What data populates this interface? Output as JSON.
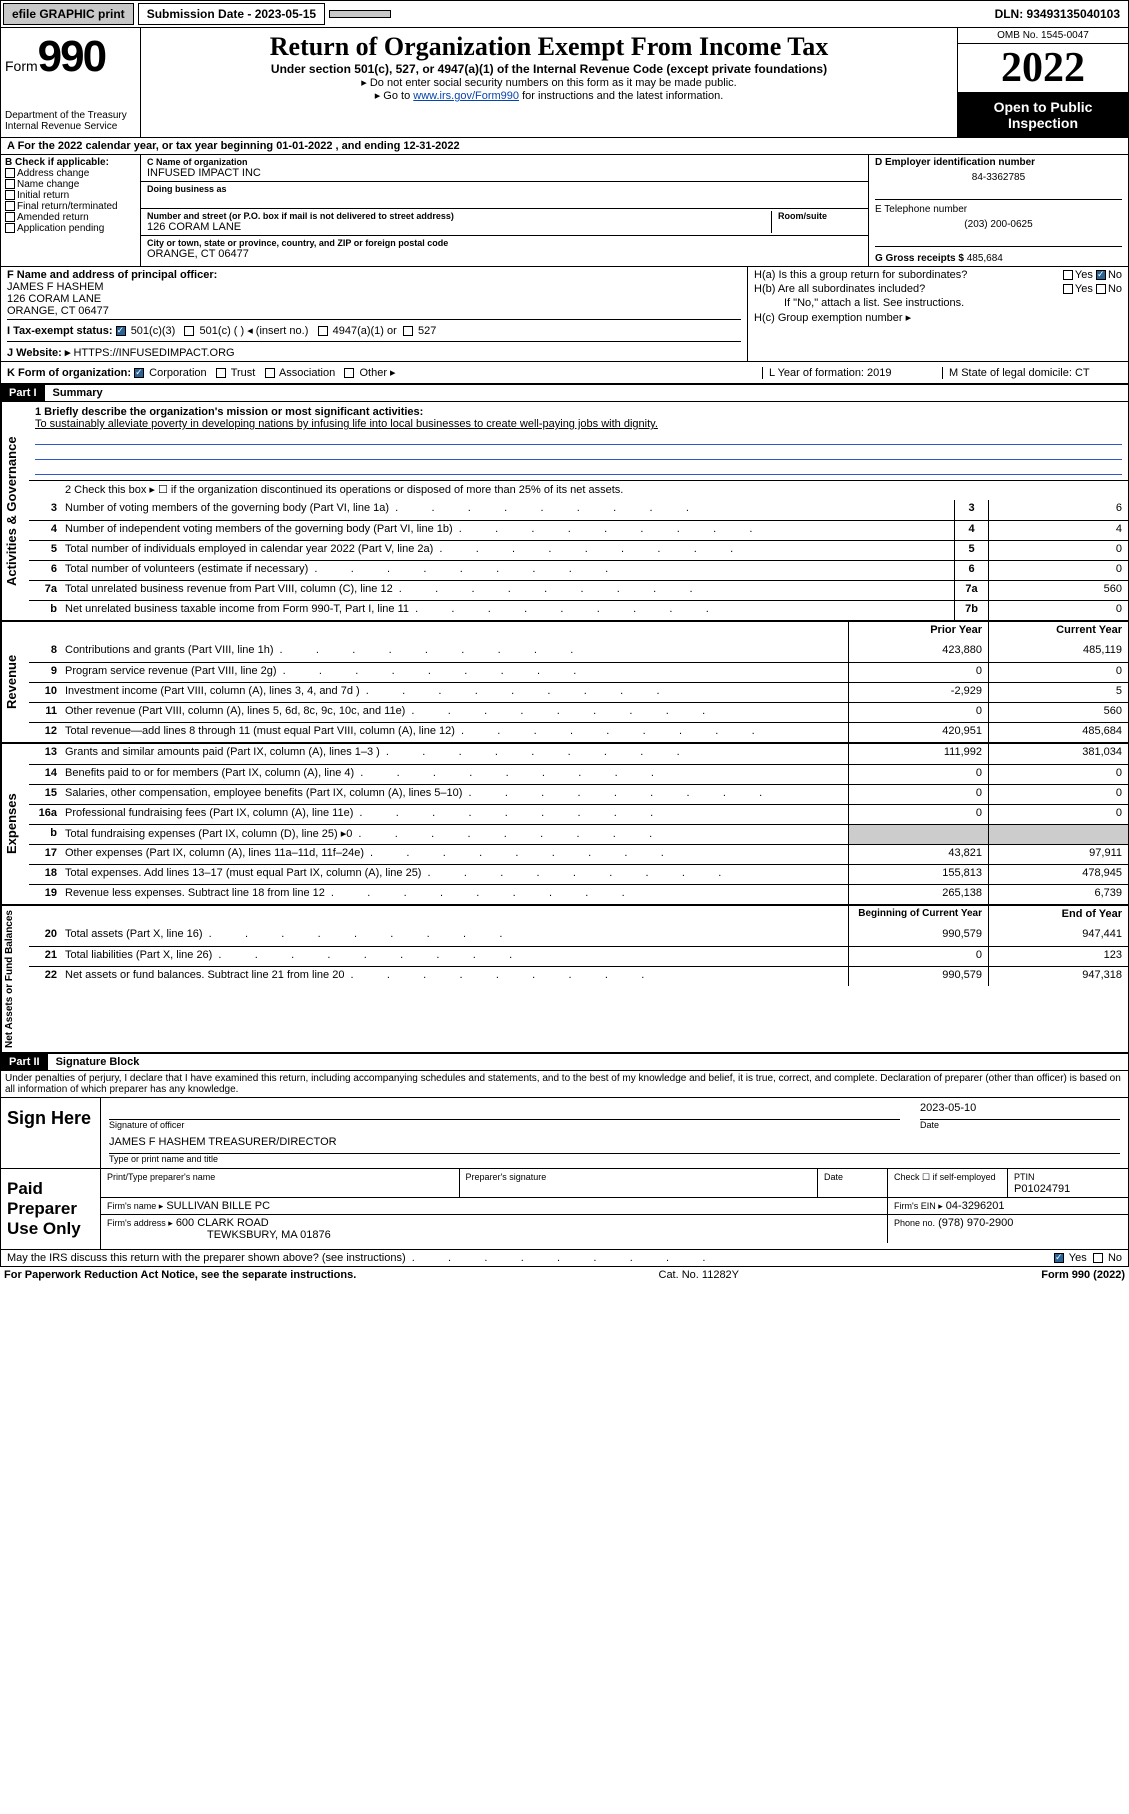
{
  "topbar": {
    "efile": "efile GRAPHIC print",
    "submission": "Submission Date - 2023-05-15",
    "dln": "DLN: 93493135040103"
  },
  "header": {
    "formword": "Form",
    "formnum": "990",
    "dept": "Department of the Treasury\nInternal Revenue Service",
    "title": "Return of Organization Exempt From Income Tax",
    "subtitle": "Under section 501(c), 527, or 4947(a)(1) of the Internal Revenue Code (except private foundations)",
    "note1": "▸ Do not enter social security numbers on this form as it may be made public.",
    "note2_pre": "▸ Go to ",
    "note2_link": "www.irs.gov/Form990",
    "note2_post": " for instructions and the latest information.",
    "omb": "OMB No. 1545-0047",
    "year": "2022",
    "opento": "Open to Public Inspection"
  },
  "A": {
    "label": "A For the 2022 calendar year, or tax year beginning 01-01-2022   , and ending 12-31-2022"
  },
  "B": {
    "label": "B Check if applicable:",
    "items": [
      "Address change",
      "Name change",
      "Initial return",
      "Final return/terminated",
      "Amended return",
      "Application pending"
    ]
  },
  "C": {
    "name_label": "C Name of organization",
    "name": "INFUSED IMPACT INC",
    "dba_label": "Doing business as",
    "street_label": "Number and street (or P.O. box if mail is not delivered to street address)",
    "room_label": "Room/suite",
    "street": "126 CORAM LANE",
    "city_label": "City or town, state or province, country, and ZIP or foreign postal code",
    "city": "ORANGE, CT  06477"
  },
  "D": {
    "label": "D Employer identification number",
    "value": "84-3362785"
  },
  "E": {
    "label": "E Telephone number",
    "value": "(203) 200-0625"
  },
  "G": {
    "label": "G Gross receipts $",
    "value": "485,684"
  },
  "F": {
    "label": "F Name and address of principal officer:",
    "name": "JAMES F HASHEM",
    "addr1": "126 CORAM LANE",
    "addr2": "ORANGE, CT  06477"
  },
  "H": {
    "a": "H(a)  Is this a group return for subordinates?",
    "b": "H(b)  Are all subordinates included?",
    "ifno": "If \"No,\" attach a list. See instructions.",
    "c": "H(c)  Group exemption number ▸",
    "yes": "Yes",
    "no": "No"
  },
  "I": {
    "label": "I   Tax-exempt status:",
    "c3": "501(c)(3)",
    "c": "501(c) (  ) ◂ (insert no.)",
    "a4947": "4947(a)(1) or",
    "s527": "527"
  },
  "J": {
    "label": "J   Website: ▸",
    "value": "HTTPS://INFUSEDIMPACT.ORG"
  },
  "K": {
    "label": "K Form of organization:",
    "corp": "Corporation",
    "trust": "Trust",
    "assoc": "Association",
    "other": "Other ▸"
  },
  "L": {
    "label": "L Year of formation: 2019"
  },
  "M": {
    "label": "M State of legal domicile: CT"
  },
  "partI": {
    "header": "Part I",
    "title": "Summary",
    "mission_label": "1  Briefly describe the organization's mission or most significant activities:",
    "mission": "To sustainably alleviate poverty in developing nations by infusing life into local businesses to create well-paying jobs with dignity.",
    "line2": "2   Check this box ▸ ☐  if the organization discontinued its operations or disposed of more than 25% of its net assets.",
    "lines_gov": [
      {
        "n": "3",
        "desc": "Number of voting members of the governing body (Part VI, line 1a)",
        "box": "3",
        "val": "6"
      },
      {
        "n": "4",
        "desc": "Number of independent voting members of the governing body (Part VI, line 1b)",
        "box": "4",
        "val": "4"
      },
      {
        "n": "5",
        "desc": "Total number of individuals employed in calendar year 2022 (Part V, line 2a)",
        "box": "5",
        "val": "0"
      },
      {
        "n": "6",
        "desc": "Total number of volunteers (estimate if necessary)",
        "box": "6",
        "val": "0"
      },
      {
        "n": "7a",
        "desc": "Total unrelated business revenue from Part VIII, column (C), line 12",
        "box": "7a",
        "val": "560"
      },
      {
        "n": "b",
        "desc": "Net unrelated business taxable income from Form 990-T, Part I, line 11",
        "box": "7b",
        "val": "0"
      }
    ],
    "prior": "Prior Year",
    "current": "Current Year",
    "rev": [
      {
        "n": "8",
        "desc": "Contributions and grants (Part VIII, line 1h)",
        "p": "423,880",
        "c": "485,119"
      },
      {
        "n": "9",
        "desc": "Program service revenue (Part VIII, line 2g)",
        "p": "0",
        "c": "0"
      },
      {
        "n": "10",
        "desc": "Investment income (Part VIII, column (A), lines 3, 4, and 7d )",
        "p": "-2,929",
        "c": "5"
      },
      {
        "n": "11",
        "desc": "Other revenue (Part VIII, column (A), lines 5, 6d, 8c, 9c, 10c, and 11e)",
        "p": "0",
        "c": "560"
      },
      {
        "n": "12",
        "desc": "Total revenue—add lines 8 through 11 (must equal Part VIII, column (A), line 12)",
        "p": "420,951",
        "c": "485,684"
      }
    ],
    "exp": [
      {
        "n": "13",
        "desc": "Grants and similar amounts paid (Part IX, column (A), lines 1–3 )",
        "p": "111,992",
        "c": "381,034"
      },
      {
        "n": "14",
        "desc": "Benefits paid to or for members (Part IX, column (A), line 4)",
        "p": "0",
        "c": "0"
      },
      {
        "n": "15",
        "desc": "Salaries, other compensation, employee benefits (Part IX, column (A), lines 5–10)",
        "p": "0",
        "c": "0"
      },
      {
        "n": "16a",
        "desc": "Professional fundraising fees (Part IX, column (A), line 11e)",
        "p": "0",
        "c": "0"
      },
      {
        "n": "b",
        "desc": "Total fundraising expenses (Part IX, column (D), line 25) ▸0",
        "p": "",
        "c": "",
        "shade": true
      },
      {
        "n": "17",
        "desc": "Other expenses (Part IX, column (A), lines 11a–11d, 11f–24e)",
        "p": "43,821",
        "c": "97,911"
      },
      {
        "n": "18",
        "desc": "Total expenses. Add lines 13–17 (must equal Part IX, column (A), line 25)",
        "p": "155,813",
        "c": "478,945"
      },
      {
        "n": "19",
        "desc": "Revenue less expenses. Subtract line 18 from line 12",
        "p": "265,138",
        "c": "6,739"
      }
    ],
    "boy": "Beginning of Current Year",
    "eoy": "End of Year",
    "na": [
      {
        "n": "20",
        "desc": "Total assets (Part X, line 16)",
        "p": "990,579",
        "c": "947,441"
      },
      {
        "n": "21",
        "desc": "Total liabilities (Part X, line 26)",
        "p": "0",
        "c": "123"
      },
      {
        "n": "22",
        "desc": "Net assets or fund balances. Subtract line 21 from line 20",
        "p": "990,579",
        "c": "947,318"
      }
    ],
    "tabs": {
      "gov": "Activities & Governance",
      "rev": "Revenue",
      "exp": "Expenses",
      "na": "Net Assets or Fund Balances"
    }
  },
  "partII": {
    "header": "Part II",
    "title": "Signature Block",
    "penalty": "Under penalties of perjury, I declare that I have examined this return, including accompanying schedules and statements, and to the best of my knowledge and belief, it is true, correct, and complete. Declaration of preparer (other than officer) is based on all information of which preparer has any knowledge.",
    "sign": "Sign Here",
    "sig_officer": "Signature of officer",
    "date": "Date",
    "sig_date": "2023-05-10",
    "officer": "JAMES F HASHEM  TREASURER/DIRECTOR",
    "typename": "Type or print name and title",
    "paid": "Paid Preparer Use Only",
    "pt_name": "Print/Type preparer's name",
    "pt_sig": "Preparer's signature",
    "pt_date": "Date",
    "check": "Check ☐ if self-employed",
    "ptin_l": "PTIN",
    "ptin": "P01024791",
    "firm_l": "Firm's name    ▸",
    "firm": "SULLIVAN BILLE PC",
    "fein_l": "Firm's EIN ▸",
    "fein": "04-3296201",
    "faddr_l": "Firm's address ▸",
    "faddr1": "600 CLARK ROAD",
    "faddr2": "TEWKSBURY, MA  01876",
    "phone_l": "Phone no.",
    "phone": "(978) 970-2900",
    "discuss": "May the IRS discuss this return with the preparer shown above? (see instructions)",
    "yes": "Yes",
    "no": "No"
  },
  "footer": {
    "left": "For Paperwork Reduction Act Notice, see the separate instructions.",
    "mid": "Cat. No. 11282Y",
    "right": "Form 990 (2022)"
  }
}
